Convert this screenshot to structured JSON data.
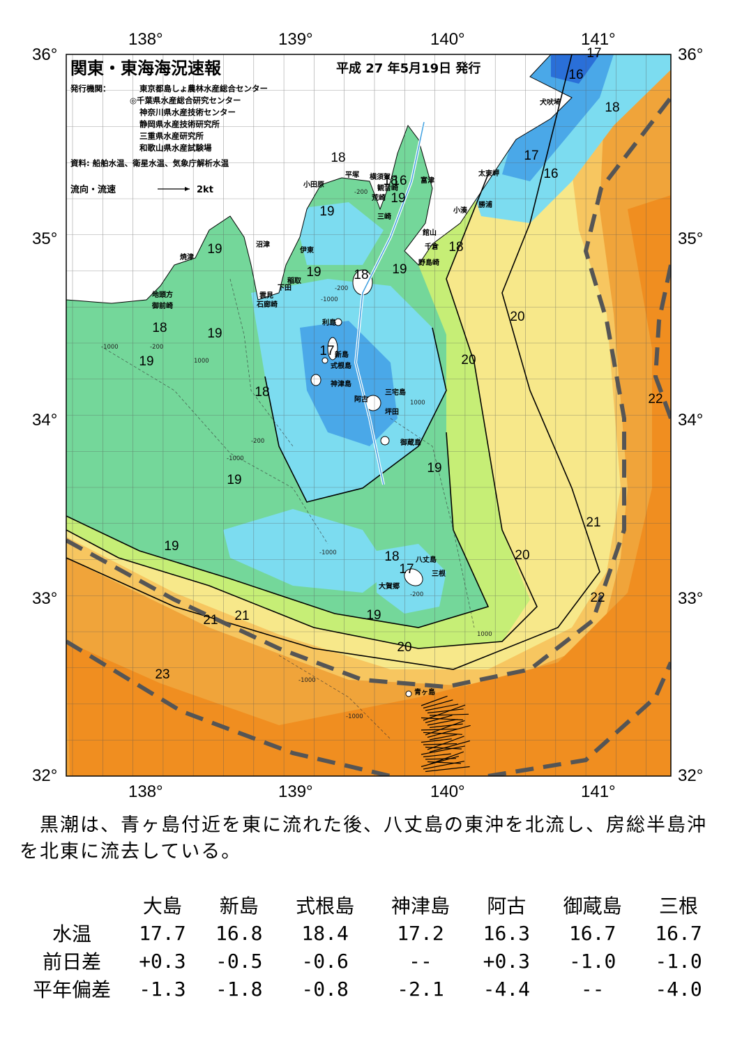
{
  "title": "関東・東海海況速報",
  "issue_date": "平成 27 年5月19日 発行",
  "issuers_label": "発行機関：",
  "issuers": [
    "東京都島しょ農林水産総合センター",
    "◎千葉県水産総合研究センター",
    "神奈川県水産技術センター",
    "静岡県水産技術研究所",
    "三重県水産研究所",
    "和歌山県水産試験場"
  ],
  "sources": "資料: 船舶水温、衛星水温、気象庁解析水温",
  "legend_flow": "流向・流速",
  "legend_speed": "2kt",
  "axes": {
    "lon_labels": [
      "138°",
      "139°",
      "140°",
      "141°"
    ],
    "lat_labels": [
      "36°",
      "35°",
      "34°",
      "33°",
      "32°"
    ]
  },
  "place_names": {
    "inubosaki": "犬吠埼",
    "taitomisaki": "太東岬",
    "katsuura": "勝浦",
    "kominato": "小湊",
    "futtsu": "富津",
    "yokosuka": "横須賀",
    "kannonzaki": "観音崎",
    "araki": "荒崎",
    "misaki": "三崎",
    "hiratsuka": "平塚",
    "odawara": "小田原",
    "tateyama": "館山",
    "chikura": "千倉",
    "nojimazaki": "野島崎",
    "numazu": "沼津",
    "ito": "伊東",
    "inatori": "稲取",
    "shimoda": "下田",
    "mera": "雲見",
    "irozaki": "石廊崎",
    "yaizu": "焼津",
    "jitokata": "地頭方",
    "omaezaki": "御前崎",
    "toshima": "利島",
    "niijima": "新島",
    "shikinejima": "式根島",
    "kozushima": "神津島",
    "miyakejima": "三宅島",
    "ako": "阿古",
    "tsubota": "坪田",
    "mikurajima": "御蔵島",
    "hachijojima": "八丈島",
    "mitsune": "三根",
    "okago": "大賀郷",
    "aogashima": "青ヶ島"
  },
  "isotherm_labels": [
    "16",
    "16",
    "16",
    "17",
    "17",
    "17",
    "17",
    "18",
    "18",
    "18",
    "18",
    "18",
    "18",
    "18",
    "18",
    "19",
    "19",
    "19",
    "19",
    "19",
    "19",
    "19",
    "19",
    "19",
    "19",
    "19",
    "20",
    "20",
    "20",
    "20",
    "21",
    "21",
    "21",
    "22",
    "22",
    "23",
    "23"
  ],
  "depth_labels": [
    "-200",
    "-200",
    "-200",
    "-200",
    "-200",
    "-1000",
    "-1000",
    "-1000",
    "-1000",
    "-1000",
    "-1000",
    "1000",
    "1000",
    "1000"
  ],
  "colors": {
    "t16": "#2a6fd8",
    "t17": "#4aa8e8",
    "t18": "#7cdcf0",
    "t19": "#74d79a",
    "t20": "#c6ee76",
    "t21": "#f7e88a",
    "t22": "#f7c660",
    "t23": "#f0a43a",
    "t24": "#f08e20",
    "land": "#ffffff",
    "kuroshio": "#555555"
  },
  "summary": "　黒潮は、青ヶ島付近を東に流れた後、八丈島の東沖を北流し、房総半島沖を北東に流去している。",
  "table": {
    "columns": [
      "大島",
      "新島",
      "式根島",
      "神津島",
      "阿古",
      "御蔵島",
      "三根"
    ],
    "rows": [
      {
        "label": "水温",
        "values": [
          "17.7",
          "16.8",
          "18.4",
          "17.2",
          "16.3",
          "16.7",
          "16.7"
        ]
      },
      {
        "label": "前日差",
        "values": [
          "+0.3",
          "-0.5",
          "-0.6",
          "--",
          "+0.3",
          "-1.0",
          "-1.0"
        ]
      },
      {
        "label": "平年偏差",
        "values": [
          "-1.3",
          "-1.8",
          "-0.8",
          "-2.1",
          "-4.4",
          "--",
          "-4.0"
        ]
      }
    ]
  }
}
